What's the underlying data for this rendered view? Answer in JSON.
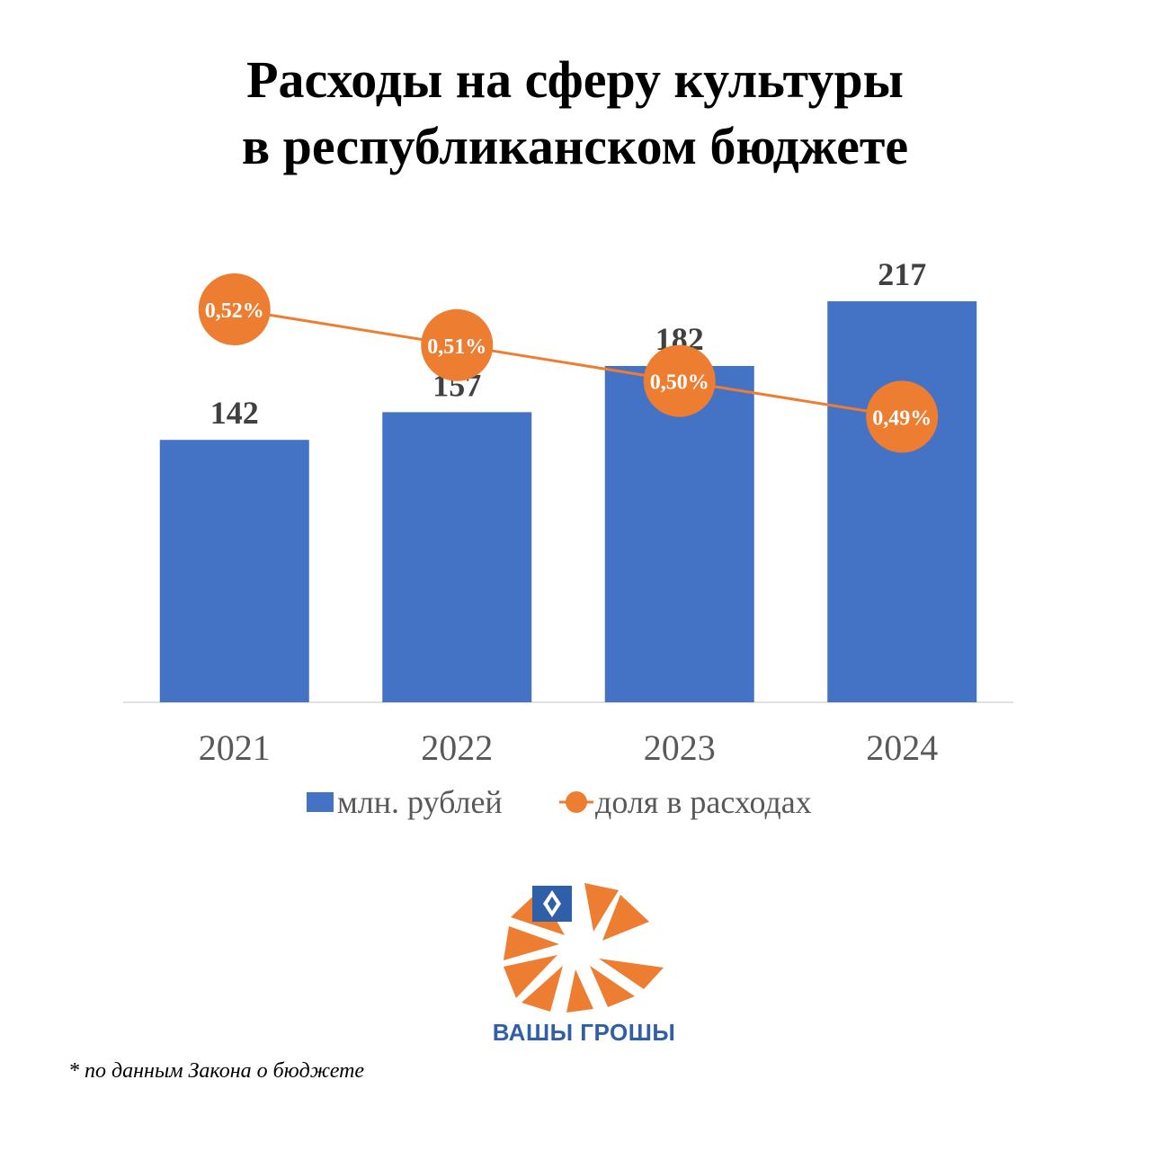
{
  "title": {
    "line1": "Расходы на сферу культуры",
    "line2": "в республиканском бюджете"
  },
  "chart_data": {
    "type": "bar",
    "categories": [
      "2021",
      "2022",
      "2023",
      "2024"
    ],
    "series": [
      {
        "name": "млн. рублей",
        "type": "bar",
        "values": [
          142,
          157,
          182,
          217
        ],
        "labels": [
          "142",
          "157",
          "182",
          "217"
        ],
        "color": "#4472c4"
      },
      {
        "name": "доля в расходах",
        "type": "line",
        "values": [
          0.52,
          0.51,
          0.5,
          0.49
        ],
        "labels": [
          "0,52%",
          "0,51%",
          "0,50%",
          "0,49%"
        ],
        "color": "#ed7d31"
      }
    ],
    "legend": "bottom",
    "grid": false
  },
  "logo": {
    "text": "ВАШЫ ГРОШЫ",
    "accent": "#ed7d31",
    "text_color": "#2f5fa8"
  },
  "footnote": "* по данным Закона о бюджете"
}
